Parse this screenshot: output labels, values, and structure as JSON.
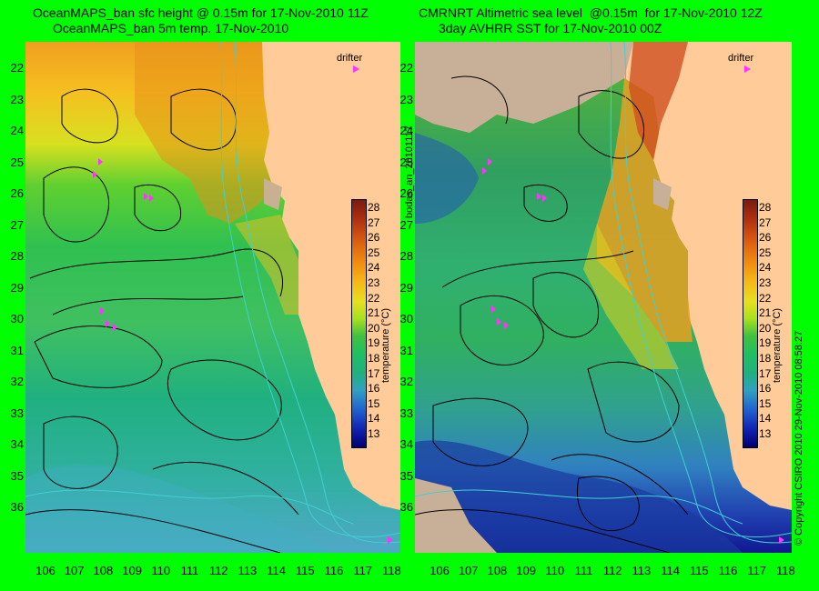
{
  "left_panel": {
    "title_line1": "OceanMAPS_ban sfc height @ 0.15m for 17-Nov-2010 11Z",
    "title_line2": "OceanMAPS_ban 5m temp. 17-Nov-2010",
    "drifter_label": "drifter",
    "colorbar_label": "temperature (°C)"
  },
  "right_panel": {
    "title_line1": "CMRNRT Altimetric sea level  @0.15m  for 17-Nov-2010 12Z",
    "title_line2": "3day AVHRR SST for 17-Nov-2010 00Z",
    "drifter_label": "drifter",
    "colorbar_label": "temperature (°C)"
  },
  "side_label": "bodas_an_20101117",
  "copyright": "© Copyright CSIRO 2010   29-Nov-2010 08:58:27",
  "y_axis_labels": [
    "22",
    "23",
    "24",
    "25",
    "26",
    "27",
    "28",
    "29",
    "30",
    "31",
    "32",
    "33",
    "34",
    "35",
    "36"
  ],
  "x_axis_labels": [
    "106",
    "107",
    "108",
    "109",
    "110",
    "111",
    "112",
    "113",
    "114",
    "115",
    "116",
    "117",
    "118"
  ],
  "colorbar_ticks": [
    "28",
    "27",
    "26",
    "25",
    "24",
    "23",
    "22",
    "21",
    "20",
    "19",
    "18",
    "17",
    "16",
    "15",
    "14",
    "13"
  ],
  "colors": {
    "background": "#00ff00",
    "land": "#ffcc99",
    "drifter": "#ff33ff",
    "contour_height": "#000000",
    "contour_bathymetry": "#40d0d0"
  }
}
